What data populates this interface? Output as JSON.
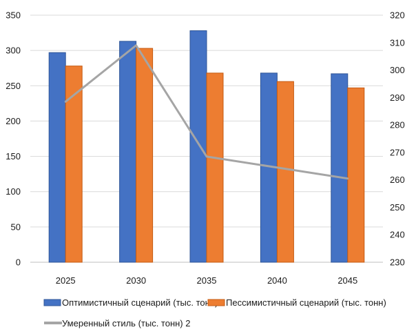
{
  "chart_data": {
    "type": "bar",
    "categories": [
      "2025",
      "2030",
      "2035",
      "2040",
      "2045"
    ],
    "series": [
      {
        "name": "Оптимистичный сценарий (тыс. тонн)",
        "kind": "bar",
        "axis": "left",
        "color": "#4472C4",
        "values": [
          297,
          313,
          328,
          268,
          267
        ]
      },
      {
        "name": "Пессимистичный сценарий (тыс. тонн)",
        "kind": "bar",
        "axis": "left",
        "color": "#ED7D31",
        "values": [
          278,
          303,
          268,
          256,
          247
        ]
      },
      {
        "name": "Умеренный стиль (тыс. тонн) 2",
        "kind": "line",
        "axis": "right",
        "color": "#A5A5A5",
        "values": [
          288.5,
          309,
          268.5,
          264.5,
          260.5
        ]
      }
    ],
    "ylim": [
      0,
      350
    ],
    "yticks": [
      "0",
      "50",
      "100",
      "150",
      "200",
      "250",
      "300",
      "350"
    ],
    "y2lim": [
      230,
      320
    ],
    "y2ticks": [
      "230",
      "240",
      "250",
      "260",
      "270",
      "280",
      "290",
      "300",
      "310",
      "320"
    ],
    "grid": true,
    "legend_position": "bottom"
  }
}
